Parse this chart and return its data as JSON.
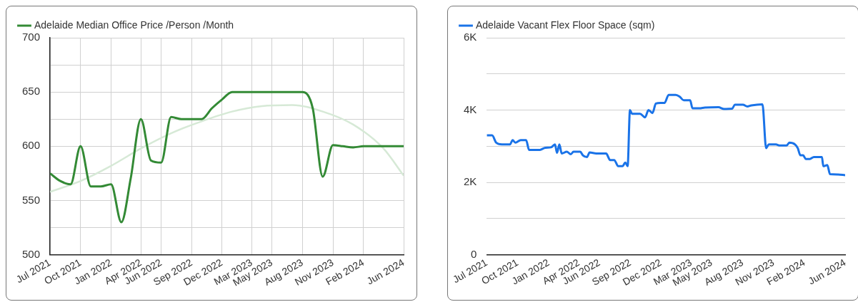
{
  "chart_data": [
    {
      "type": "line",
      "x": [
        "2021-07",
        "2021-08",
        "2021-09",
        "2021-10",
        "2021-11",
        "2021-12",
        "2022-01",
        "2022-02",
        "2022-03",
        "2022-04",
        "2022-05",
        "2022-06",
        "2022-07",
        "2022-08",
        "2022-09",
        "2022-10",
        "2022-11",
        "2022-12",
        "2023-01",
        "2023-02",
        "2023-03",
        "2023-04",
        "2023-05",
        "2023-06",
        "2023-07",
        "2023-08",
        "2023-09",
        "2023-10",
        "2023-11",
        "2023-12",
        "2024-01",
        "2024-02",
        "2024-03",
        "2024-04",
        "2024-05",
        "2024-06"
      ],
      "series": [
        {
          "name": "Adelaide Median Office Price /Person /Month",
          "color": "#338a35",
          "values": [
            575,
            568,
            565,
            600,
            563,
            563,
            565,
            530,
            570,
            625,
            587,
            585,
            627,
            625,
            625,
            625,
            635,
            643,
            650,
            650,
            650,
            650,
            650,
            650,
            650,
            650,
            635,
            572,
            601,
            600,
            599,
            600,
            600,
            600,
            600,
            600
          ]
        },
        {
          "type": "line",
          "color": "#d6e9d6",
          "x": [
            "2021-07",
            "2021-10",
            "2022-01",
            "2022-04",
            "2022-07",
            "2022-10",
            "2023-01",
            "2023-04",
            "2023-07",
            "2023-10",
            "2024-01",
            "2024-04",
            "2024-06"
          ],
          "values": [
            558,
            568,
            582,
            598,
            612,
            623,
            632,
            637,
            638,
            632,
            620,
            598,
            573
          ]
        }
      ],
      "xlim": [
        "2021-07",
        "2024-06"
      ],
      "xticks": [
        {
          "value": "2021-07",
          "label": "Jul 2021"
        },
        {
          "value": "2021-10",
          "label": "Oct 2021"
        },
        {
          "value": "2022-01",
          "label": "Jan 2022"
        },
        {
          "value": "2022-04",
          "label": "Apr 2022"
        },
        {
          "value": "2022-06",
          "label": "Jun 2022"
        },
        {
          "value": "2022-09",
          "label": "Sep 2022"
        },
        {
          "value": "2022-12",
          "label": "Dec 2022"
        },
        {
          "value": "2023-03",
          "label": "Mar 2023"
        },
        {
          "value": "2023-05",
          "label": "May 2023"
        },
        {
          "value": "2023-08",
          "label": "Aug 2023"
        },
        {
          "value": "2023-11",
          "label": "Nov 2023"
        },
        {
          "value": "2024-02",
          "label": "Feb 2024"
        },
        {
          "value": "2024-06",
          "label": "Jun 2024"
        }
      ],
      "ylim": [
        500,
        700
      ],
      "yticks": [
        500,
        {
          "value": 525,
          "label": null
        },
        550,
        {
          "value": 575,
          "label": null
        },
        600,
        {
          "value": 625,
          "label": null
        },
        650,
        {
          "value": 675,
          "label": null
        },
        700
      ],
      "grid": true,
      "legend": "top left",
      "marker": "none",
      "line_style": "solid"
    },
    {
      "type": "line",
      "x": [
        "2021-07-01",
        "2021-07-17",
        "2021-07-29",
        "2021-08-15",
        "2021-09-08",
        "2021-09-16",
        "2021-09-24",
        "2021-10-10",
        "2021-10-26",
        "2021-11-04",
        "2021-12-06",
        "2021-12-22",
        "2022-01-08",
        "2022-01-20",
        "2022-01-26",
        "2022-02-02",
        "2022-02-09",
        "2022-02-24",
        "2022-03-08",
        "2022-03-16",
        "2022-04-05",
        "2022-04-13",
        "2022-04-25",
        "2022-05-03",
        "2022-05-23",
        "2022-06-21",
        "2022-07-03",
        "2022-07-15",
        "2022-07-27",
        "2022-08-09",
        "2022-08-17",
        "2022-08-24",
        "2022-08-31",
        "2022-09-06",
        "2022-09-30",
        "2022-10-15",
        "2022-10-25",
        "2022-11-06",
        "2022-11-16",
        "2022-11-30",
        "2022-12-12",
        "2022-12-24",
        "2023-01-14",
        "2023-01-26",
        "2023-02-07",
        "2023-02-26",
        "2023-03-05",
        "2023-03-25",
        "2023-04-11",
        "2023-05-21",
        "2023-06-07",
        "2023-07-01",
        "2023-07-09",
        "2023-08-02",
        "2023-08-15",
        "2023-08-27",
        "2023-09-29",
        "2023-10-10",
        "2023-10-18",
        "2023-11-08",
        "2023-11-20",
        "2023-12-10",
        "2023-12-18",
        "2024-01-04",
        "2024-01-12",
        "2024-01-20",
        "2024-01-28",
        "2024-02-05",
        "2024-02-17",
        "2024-02-29",
        "2024-03-24",
        "2024-03-28",
        "2024-04-09",
        "2024-04-17",
        "2024-05-11",
        "2024-06-01"
      ],
      "series": [
        {
          "name": "Adelaide Vacant Flex Floor Space (sqm)",
          "color": "#1a73e8",
          "values": [
            3300,
            3300,
            3100,
            3050,
            3050,
            3170,
            3100,
            3170,
            3170,
            2900,
            2900,
            2960,
            2970,
            3050,
            2820,
            3050,
            2800,
            2850,
            2780,
            2850,
            2850,
            2750,
            2700,
            2830,
            2800,
            2800,
            2620,
            2620,
            2450,
            2450,
            2550,
            2450,
            4000,
            3900,
            3900,
            3800,
            4000,
            3920,
            4180,
            4200,
            4200,
            4420,
            4420,
            4370,
            4270,
            4270,
            4050,
            4050,
            4070,
            4080,
            4030,
            4040,
            4150,
            4150,
            4100,
            4130,
            4160,
            2950,
            3050,
            3050,
            3020,
            3020,
            3100,
            3050,
            2950,
            2750,
            2750,
            2650,
            2650,
            2700,
            2700,
            2450,
            2480,
            2230,
            2220,
            2200
          ]
        }
      ],
      "xlim": [
        "2021-07",
        "2024-06"
      ],
      "xticks": [
        {
          "value": "2021-07",
          "label": "Jul 2021"
        },
        {
          "value": "2021-10",
          "label": "Oct 2021"
        },
        {
          "value": "2022-01",
          "label": "Jan 2022"
        },
        {
          "value": "2022-04",
          "label": "Apr 2022"
        },
        {
          "value": "2022-06",
          "label": "Jun 2022"
        },
        {
          "value": "2022-09",
          "label": "Sep 2022"
        },
        {
          "value": "2022-12",
          "label": "Dec 2022"
        },
        {
          "value": "2023-03",
          "label": "Mar 2023"
        },
        {
          "value": "2023-05",
          "label": "May 2023"
        },
        {
          "value": "2023-08",
          "label": "Aug 2023"
        },
        {
          "value": "2023-11",
          "label": "Nov 2023"
        },
        {
          "value": "2024-02",
          "label": "Feb 2024"
        },
        {
          "value": "2024-06",
          "label": "Jun 2024"
        }
      ],
      "ylim": [
        0,
        6000
      ],
      "yticks": [
        0,
        {
          "value": 1000,
          "label": null
        },
        {
          "value": 2000,
          "label": "2K"
        },
        {
          "value": 3000,
          "label": null
        },
        {
          "value": 4000,
          "label": "4K"
        },
        {
          "value": 5000,
          "label": null
        },
        {
          "value": 6000,
          "label": "6K"
        }
      ],
      "grid": "y",
      "legend": "top left",
      "marker": "none",
      "line_style": "solid"
    }
  ]
}
